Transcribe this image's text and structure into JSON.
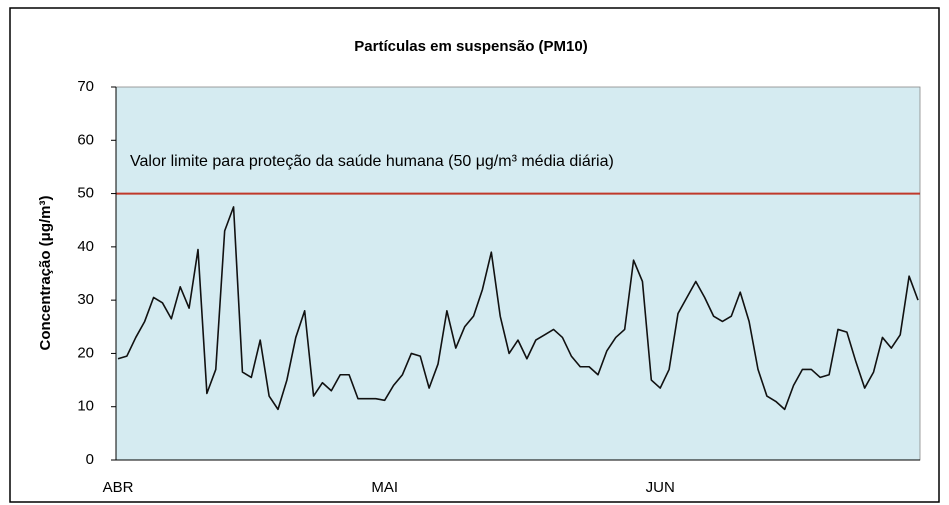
{
  "chart_data": {
    "type": "line",
    "title": "Partículas em suspensão (PM10)",
    "y_label": "Concentração (μg/m³)",
    "categories": [
      "ABR",
      null,
      null,
      null,
      null,
      null,
      null,
      null,
      null,
      null,
      null,
      null,
      null,
      null,
      null,
      null,
      null,
      null,
      null,
      null,
      null,
      null,
      null,
      null,
      null,
      null,
      null,
      null,
      null,
      null,
      "MAI",
      null,
      null,
      null,
      null,
      null,
      null,
      null,
      null,
      null,
      null,
      null,
      null,
      null,
      null,
      null,
      null,
      null,
      null,
      null,
      null,
      null,
      null,
      null,
      null,
      null,
      null,
      null,
      null,
      null,
      null,
      "JUN",
      null,
      null,
      null,
      null,
      null,
      null,
      null,
      null,
      null,
      null,
      null,
      null,
      null,
      null,
      null,
      null,
      null,
      null,
      null,
      null,
      null,
      null,
      null,
      null,
      null,
      null,
      null,
      null,
      null
    ],
    "series": [
      {
        "color": "#111111",
        "values": [
          19,
          19.5,
          23,
          26,
          30.5,
          29.5,
          26.5,
          32.5,
          28.5,
          39.5,
          12.5,
          17,
          43,
          47.5,
          16.5,
          15.5,
          22.5,
          12,
          9.5,
          15,
          23,
          28,
          12,
          14.5,
          13,
          16,
          16,
          11.5,
          11.5,
          11.5,
          11.2,
          14,
          16,
          20,
          19.5,
          13.5,
          18,
          28,
          21,
          25,
          27,
          32,
          39,
          27,
          20,
          22.5,
          19,
          22.5,
          23.5,
          24.5,
          23,
          19.5,
          17.5,
          17.5,
          16,
          20.5,
          23,
          24.5,
          37.5,
          33.5,
          15,
          13.5,
          17,
          27.5,
          30.5,
          33.5,
          30.5,
          27,
          26,
          27,
          31.5,
          26,
          17,
          12,
          11,
          9.5,
          14,
          17,
          17,
          15.5,
          16,
          24.5,
          24,
          18.5,
          13.5,
          16.5,
          23,
          21,
          23.5,
          34.5,
          30
        ]
      }
    ],
    "ylim": [
      0,
      70
    ],
    "yticks": [
      0,
      10,
      20,
      30,
      40,
      50,
      60,
      70
    ],
    "reference_lines": [
      {
        "value": 50,
        "label": "Valor limite para proteção da saúde humana  (50 μg/m³ média diária)",
        "color": "#c0392b"
      }
    ],
    "plot_background": "#d5ebf1"
  }
}
